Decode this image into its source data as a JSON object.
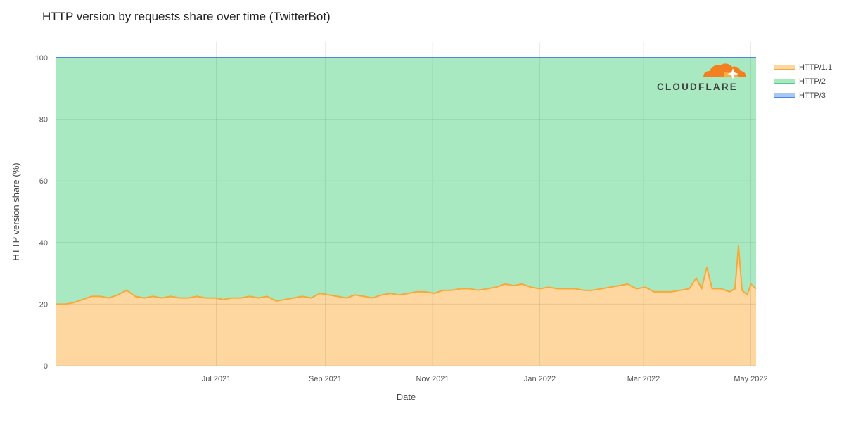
{
  "title": "HTTP version by requests share over time (TwitterBot)",
  "colors": {
    "http11_fill": "#fdd6a0",
    "http11_line": "#f6a93b",
    "http2_fill": "#a9e9c1",
    "http2_line": "#5cc98a",
    "http3_line": "#4a86e8",
    "grid": "#e3e3e3"
  },
  "legend": {
    "position": "right",
    "items": [
      {
        "label": "HTTP/1.1",
        "color": "#f6a93b",
        "fill": "#fdd6a0",
        "icon": "legend-swatch"
      },
      {
        "label": "HTTP/2",
        "color": "#5cc98a",
        "fill": "#a9e9c1",
        "icon": "legend-swatch"
      },
      {
        "label": "HTTP/3",
        "color": "#4a86e8",
        "fill": "#a9c6f5",
        "icon": "legend-swatch"
      }
    ]
  },
  "logo": {
    "text": "CLOUDFLARE",
    "icon": "cloudflare-logo-icon",
    "color": "#f38020"
  },
  "chart_data": {
    "type": "area",
    "stacked": true,
    "title": "HTTP version by requests share over time (TwitterBot)",
    "xlabel": "Date",
    "ylabel": "HTTP version share (%)",
    "ylim": [
      0,
      100
    ],
    "yticks": [
      0,
      20,
      40,
      60,
      80,
      100
    ],
    "xlim": [
      "2021-04-01",
      "2022-05-04"
    ],
    "xticks": [
      {
        "date": "2021-07-01",
        "label": "Jul 2021"
      },
      {
        "date": "2021-09-01",
        "label": "Sep 2021"
      },
      {
        "date": "2021-11-01",
        "label": "Nov 2021"
      },
      {
        "date": "2022-01-01",
        "label": "Jan 2022"
      },
      {
        "date": "2022-03-01",
        "label": "Mar 2022"
      },
      {
        "date": "2022-05-01",
        "label": "May 2022"
      }
    ],
    "grid": true,
    "series": [
      {
        "name": "HTTP/1.1",
        "points": [
          [
            "2021-04-01",
            20
          ],
          [
            "2021-04-06",
            20
          ],
          [
            "2021-04-11",
            20.5
          ],
          [
            "2021-04-16",
            21.5
          ],
          [
            "2021-04-21",
            22.5
          ],
          [
            "2021-04-26",
            22.5
          ],
          [
            "2021-05-01",
            22
          ],
          [
            "2021-05-06",
            23
          ],
          [
            "2021-05-11",
            24.5
          ],
          [
            "2021-05-16",
            22.5
          ],
          [
            "2021-05-21",
            22
          ],
          [
            "2021-05-26",
            22.5
          ],
          [
            "2021-05-31",
            22
          ],
          [
            "2021-06-05",
            22.5
          ],
          [
            "2021-06-10",
            22
          ],
          [
            "2021-06-15",
            22
          ],
          [
            "2021-06-20",
            22.5
          ],
          [
            "2021-06-25",
            22
          ],
          [
            "2021-06-30",
            22
          ],
          [
            "2021-07-05",
            21.5
          ],
          [
            "2021-07-10",
            22
          ],
          [
            "2021-07-15",
            22
          ],
          [
            "2021-07-20",
            22.5
          ],
          [
            "2021-07-25",
            22
          ],
          [
            "2021-07-30",
            22.5
          ],
          [
            "2021-08-04",
            21
          ],
          [
            "2021-08-09",
            21.5
          ],
          [
            "2021-08-14",
            22
          ],
          [
            "2021-08-19",
            22.5
          ],
          [
            "2021-08-24",
            22
          ],
          [
            "2021-08-29",
            23.5
          ],
          [
            "2021-09-03",
            23
          ],
          [
            "2021-09-08",
            22.5
          ],
          [
            "2021-09-13",
            22
          ],
          [
            "2021-09-18",
            23
          ],
          [
            "2021-09-23",
            22.5
          ],
          [
            "2021-09-28",
            22
          ],
          [
            "2021-10-03",
            23
          ],
          [
            "2021-10-08",
            23.5
          ],
          [
            "2021-10-13",
            23
          ],
          [
            "2021-10-18",
            23.5
          ],
          [
            "2021-10-23",
            24
          ],
          [
            "2021-10-28",
            24
          ],
          [
            "2021-11-02",
            23.5
          ],
          [
            "2021-11-07",
            24.5
          ],
          [
            "2021-11-12",
            24.5
          ],
          [
            "2021-11-17",
            25
          ],
          [
            "2021-11-22",
            25
          ],
          [
            "2021-11-27",
            24.5
          ],
          [
            "2021-12-02",
            25
          ],
          [
            "2021-12-07",
            25.5
          ],
          [
            "2021-12-12",
            26.5
          ],
          [
            "2021-12-17",
            26
          ],
          [
            "2021-12-22",
            26.5
          ],
          [
            "2021-12-27",
            25.5
          ],
          [
            "2022-01-01",
            25
          ],
          [
            "2022-01-06",
            25.5
          ],
          [
            "2022-01-11",
            25
          ],
          [
            "2022-01-16",
            25
          ],
          [
            "2022-01-21",
            25
          ],
          [
            "2022-01-26",
            24.5
          ],
          [
            "2022-01-31",
            24.5
          ],
          [
            "2022-02-05",
            25
          ],
          [
            "2022-02-10",
            25.5
          ],
          [
            "2022-02-15",
            26
          ],
          [
            "2022-02-20",
            26.5
          ],
          [
            "2022-02-25",
            25
          ],
          [
            "2022-03-02",
            25.5
          ],
          [
            "2022-03-07",
            24
          ],
          [
            "2022-03-12",
            24
          ],
          [
            "2022-03-17",
            24
          ],
          [
            "2022-03-22",
            24.5
          ],
          [
            "2022-03-27",
            25
          ],
          [
            "2022-03-31",
            28.5
          ],
          [
            "2022-04-03",
            25
          ],
          [
            "2022-04-06",
            32
          ],
          [
            "2022-04-09",
            25
          ],
          [
            "2022-04-14",
            25
          ],
          [
            "2022-04-19",
            24
          ],
          [
            "2022-04-22",
            25
          ],
          [
            "2022-04-24",
            39
          ],
          [
            "2022-04-26",
            24.5
          ],
          [
            "2022-04-29",
            23
          ],
          [
            "2022-05-01",
            26.5
          ],
          [
            "2022-05-04",
            25
          ]
        ]
      },
      {
        "name": "HTTP/2",
        "points_note_free": true,
        "points": "remainder_to_100"
      },
      {
        "name": "HTTP/3",
        "points": [
          [
            "2021-04-01",
            0
          ],
          [
            "2022-05-04",
            0
          ]
        ]
      }
    ]
  },
  "footer": {
    "xlabel": "Date",
    "ylabel": "HTTP version share (%)"
  }
}
